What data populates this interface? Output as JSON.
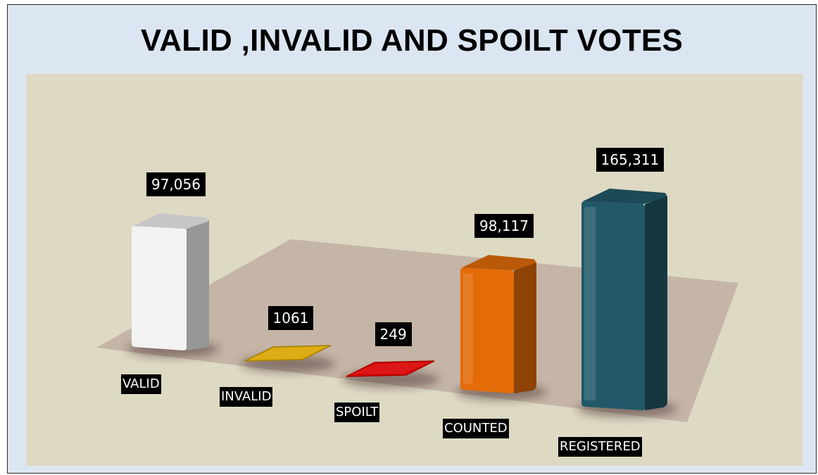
{
  "chart_data": {
    "type": "bar",
    "title": "VALID ,INVALID AND SPOILT VOTES",
    "categories": [
      "VALID",
      "INVALID",
      "SPOILT",
      "COUNTED",
      "REGISTERED"
    ],
    "values": [
      97056,
      1061,
      249,
      98117,
      165311
    ],
    "data_labels": [
      "97,056",
      "1061",
      "249",
      "98,117",
      "165,311"
    ],
    "colors": [
      "#f2f2f2",
      "#d9a600",
      "#d90000",
      "#e36c09",
      "#215968"
    ],
    "legend": "none",
    "grid": false,
    "three_d": true
  }
}
